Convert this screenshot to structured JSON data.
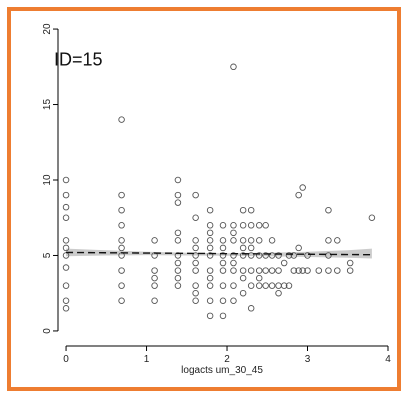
{
  "chart_data": {
    "type": "scatter",
    "title": "",
    "xlabel": "logacts um_30_45",
    "ylabel": "",
    "xlim": [
      -0.1,
      4.0
    ],
    "ylim": [
      -0.6,
      20.6
    ],
    "xticks": [
      0,
      1,
      2,
      3,
      4
    ],
    "yticks": [
      0,
      5,
      10,
      15,
      20
    ],
    "grid": false,
    "legend": "none",
    "annotation": "ID=15",
    "colors": {
      "frame": "#ee7d31",
      "points": "#555555",
      "fit_line": "#111111",
      "ci_band": "#bbbbbb"
    },
    "fit_line": {
      "x": [
        0,
        3.8
      ],
      "y": [
        5.2,
        5.05
      ]
    },
    "ci_band": {
      "x": [
        0,
        0.5,
        1.0,
        1.5,
        2.0,
        2.5,
        3.0,
        3.5,
        3.8
      ],
      "lower": [
        4.95,
        5.0,
        5.02,
        5.0,
        4.98,
        4.95,
        4.9,
        4.85,
        4.8
      ],
      "upper": [
        5.45,
        5.35,
        5.25,
        5.18,
        5.15,
        5.18,
        5.25,
        5.35,
        5.45
      ]
    },
    "points": [
      [
        0,
        10
      ],
      [
        0,
        9
      ],
      [
        0,
        8.2
      ],
      [
        0,
        7.5
      ],
      [
        0,
        6
      ],
      [
        0,
        5.5
      ],
      [
        0,
        5
      ],
      [
        0,
        4.2
      ],
      [
        0,
        3
      ],
      [
        0,
        2
      ],
      [
        0,
        1.5
      ],
      [
        0.69,
        14
      ],
      [
        0.69,
        9
      ],
      [
        0.69,
        8
      ],
      [
        0.69,
        7
      ],
      [
        0.69,
        6
      ],
      [
        0.69,
        5.5
      ],
      [
        0.69,
        5
      ],
      [
        0.69,
        4
      ],
      [
        0.69,
        3
      ],
      [
        0.69,
        2
      ],
      [
        1.1,
        6
      ],
      [
        1.1,
        5
      ],
      [
        1.1,
        4
      ],
      [
        1.1,
        3.5
      ],
      [
        1.1,
        3
      ],
      [
        1.1,
        2
      ],
      [
        1.39,
        10
      ],
      [
        1.39,
        9
      ],
      [
        1.39,
        8.5
      ],
      [
        1.39,
        6.5
      ],
      [
        1.39,
        6
      ],
      [
        1.39,
        5
      ],
      [
        1.39,
        4.5
      ],
      [
        1.39,
        4
      ],
      [
        1.39,
        3.5
      ],
      [
        1.39,
        3
      ],
      [
        1.61,
        9
      ],
      [
        1.61,
        7.5
      ],
      [
        1.61,
        6
      ],
      [
        1.61,
        5.5
      ],
      [
        1.61,
        5
      ],
      [
        1.61,
        4.5
      ],
      [
        1.61,
        4
      ],
      [
        1.61,
        3
      ],
      [
        1.61,
        2.5
      ],
      [
        1.61,
        2
      ],
      [
        1.79,
        8
      ],
      [
        1.79,
        7
      ],
      [
        1.79,
        6.5
      ],
      [
        1.79,
        6
      ],
      [
        1.79,
        5.5
      ],
      [
        1.79,
        5
      ],
      [
        1.79,
        4
      ],
      [
        1.79,
        3.5
      ],
      [
        1.79,
        3
      ],
      [
        1.79,
        2
      ],
      [
        1.79,
        1
      ],
      [
        1.95,
        7
      ],
      [
        1.95,
        6
      ],
      [
        1.95,
        5.5
      ],
      [
        1.95,
        5
      ],
      [
        1.95,
        4.5
      ],
      [
        1.95,
        4
      ],
      [
        1.95,
        3
      ],
      [
        1.95,
        2
      ],
      [
        1.95,
        1
      ],
      [
        2.08,
        17.5
      ],
      [
        2.08,
        7
      ],
      [
        2.08,
        6.5
      ],
      [
        2.08,
        6
      ],
      [
        2.08,
        5
      ],
      [
        2.08,
        4.5
      ],
      [
        2.08,
        4
      ],
      [
        2.08,
        3
      ],
      [
        2.08,
        2
      ],
      [
        2.2,
        8
      ],
      [
        2.2,
        7
      ],
      [
        2.2,
        6
      ],
      [
        2.2,
        5.5
      ],
      [
        2.2,
        5
      ],
      [
        2.2,
        4
      ],
      [
        2.2,
        3.5
      ],
      [
        2.2,
        2.5
      ],
      [
        2.3,
        8
      ],
      [
        2.3,
        7
      ],
      [
        2.3,
        6
      ],
      [
        2.3,
        5.5
      ],
      [
        2.3,
        5
      ],
      [
        2.3,
        4
      ],
      [
        2.3,
        3
      ],
      [
        2.3,
        1.5
      ],
      [
        2.4,
        7
      ],
      [
        2.4,
        6
      ],
      [
        2.4,
        5
      ],
      [
        2.4,
        4
      ],
      [
        2.4,
        3.5
      ],
      [
        2.4,
        3
      ],
      [
        2.48,
        7
      ],
      [
        2.48,
        5
      ],
      [
        2.48,
        4
      ],
      [
        2.48,
        3
      ],
      [
        2.56,
        6
      ],
      [
        2.56,
        5
      ],
      [
        2.56,
        4
      ],
      [
        2.56,
        3
      ],
      [
        2.64,
        5
      ],
      [
        2.64,
        4
      ],
      [
        2.64,
        3
      ],
      [
        2.64,
        2.5
      ],
      [
        2.71,
        4.5
      ],
      [
        2.71,
        3
      ],
      [
        2.77,
        5
      ],
      [
        2.77,
        3
      ],
      [
        2.83,
        5
      ],
      [
        2.83,
        4
      ],
      [
        2.89,
        9
      ],
      [
        2.89,
        5.5
      ],
      [
        2.89,
        4
      ],
      [
        2.94,
        9.5
      ],
      [
        2.94,
        4
      ],
      [
        3.0,
        5
      ],
      [
        3.0,
        4
      ],
      [
        3.14,
        4
      ],
      [
        3.26,
        8
      ],
      [
        3.26,
        6
      ],
      [
        3.26,
        5
      ],
      [
        3.26,
        4
      ],
      [
        3.37,
        6
      ],
      [
        3.37,
        4
      ],
      [
        3.53,
        4.5
      ],
      [
        3.53,
        4
      ],
      [
        3.8,
        7.5
      ]
    ]
  }
}
